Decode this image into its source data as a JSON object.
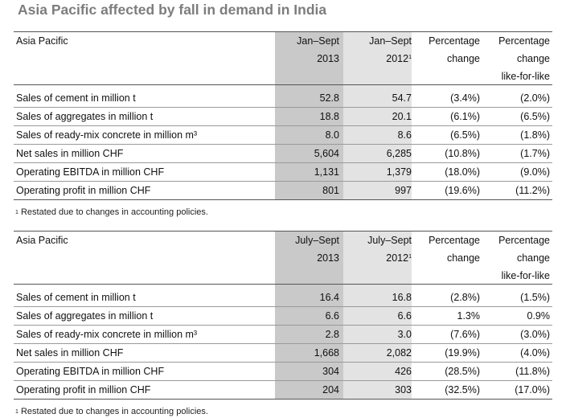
{
  "title": "Asia Pacific affected by fall in demand in India",
  "tables": [
    {
      "header": {
        "label": "Asia Pacific",
        "col2": [
          "Jan–Sept",
          "2013"
        ],
        "col3": [
          "Jan–Sept",
          "2012"
        ],
        "col3_sup": "1",
        "col4": [
          "Percentage",
          "change"
        ],
        "col5": [
          "Percentage",
          "change",
          "like-for-like"
        ]
      },
      "rows": [
        {
          "label": "Sales of cement in million t",
          "v2013": "52.8",
          "v2012": "54.7",
          "change": "(3.4%)",
          "lfl": "(2.0%)"
        },
        {
          "label": "Sales of aggregates in million t",
          "v2013": "18.8",
          "v2012": "20.1",
          "change": "(6.1%)",
          "lfl": "(6.5%)"
        },
        {
          "label": "Sales of ready-mix concrete in million m³",
          "v2013": "8.0",
          "v2012": "8.6",
          "change": "(6.5%)",
          "lfl": "(1.8%)"
        },
        {
          "label": "Net sales in million CHF",
          "v2013": "5,604",
          "v2012": "6,285",
          "change": "(10.8%)",
          "lfl": "(1.7%)"
        },
        {
          "label": "Operating EBITDA in million CHF",
          "v2013": "1,131",
          "v2012": "1,379",
          "change": "(18.0%)",
          "lfl": "(9.0%)"
        },
        {
          "label": "Operating profit in million CHF",
          "v2013": "801",
          "v2012": "997",
          "change": "(19.6%)",
          "lfl": "(11.2%)"
        }
      ],
      "note_sup": "1",
      "note": "Restated due to changes in accounting policies."
    },
    {
      "header": {
        "label": "Asia Pacific",
        "col2": [
          "July–Sept",
          "2013"
        ],
        "col3": [
          "July–Sept",
          "2012"
        ],
        "col3_sup": "1",
        "col4": [
          "Percentage",
          "change"
        ],
        "col5": [
          "Percentage",
          "change",
          "like-for-like"
        ]
      },
      "rows": [
        {
          "label": "Sales of cement in million t",
          "v2013": "16.4",
          "v2012": "16.8",
          "change": "(2.8%)",
          "lfl": "(1.5%)"
        },
        {
          "label": "Sales of aggregates in million t",
          "v2013": "6.6",
          "v2012": "6.6",
          "change": "1.3%",
          "lfl": "0.9%"
        },
        {
          "label": "Sales of ready-mix concrete in million m³",
          "v2013": "2.8",
          "v2012": "3.0",
          "change": "(7.6%)",
          "lfl": "(3.0%)"
        },
        {
          "label": "Net sales in million CHF",
          "v2013": "1,668",
          "v2012": "2,082",
          "change": "(19.9%)",
          "lfl": "(4.0%)"
        },
        {
          "label": "Operating EBITDA in million CHF",
          "v2013": "304",
          "v2012": "426",
          "change": "(28.5%)",
          "lfl": "(11.8%)"
        },
        {
          "label": "Operating profit in million CHF",
          "v2013": "204",
          "v2012": "303",
          "change": "(32.5%)",
          "lfl": "(17.0%)"
        }
      ],
      "note_sup": "1",
      "note": "Restated due to changes in accounting policies."
    }
  ]
}
